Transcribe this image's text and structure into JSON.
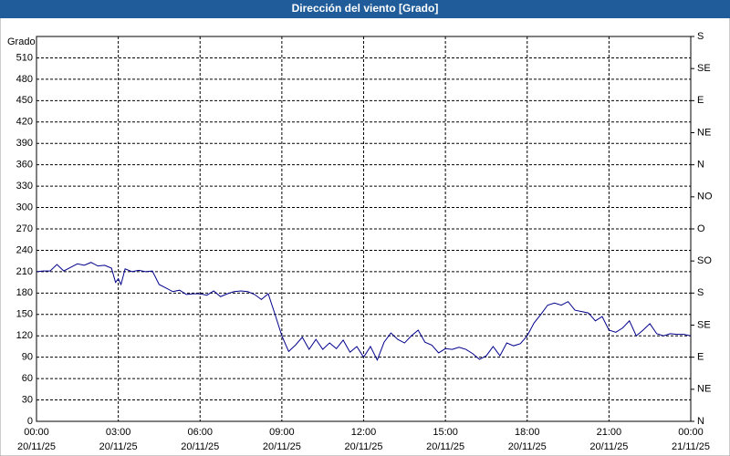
{
  "chart_data": {
    "type": "line",
    "title": "Dirección del viento [Grado]",
    "ylabel": "Grado",
    "x": [
      0,
      0.25,
      0.5,
      0.75,
      1,
      1.25,
      1.5,
      1.75,
      2,
      2.25,
      2.5,
      2.75,
      2.9,
      3,
      3.1,
      3.25,
      3.5,
      3.75,
      4,
      4.25,
      4.5,
      4.75,
      5,
      5.25,
      5.5,
      5.75,
      6,
      6.25,
      6.5,
      6.75,
      7,
      7.25,
      7.5,
      7.75,
      8,
      8.25,
      8.5,
      8.75,
      9,
      9.25,
      9.5,
      9.75,
      10,
      10.25,
      10.5,
      10.75,
      11,
      11.25,
      11.5,
      11.75,
      12,
      12.25,
      12.5,
      12.75,
      13,
      13.25,
      13.5,
      13.75,
      14,
      14.25,
      14.5,
      14.75,
      15,
      15.25,
      15.5,
      15.75,
      16,
      16.25,
      16.5,
      16.75,
      17,
      17.25,
      17.5,
      17.75,
      18,
      18.25,
      18.5,
      18.75,
      19,
      19.25,
      19.5,
      19.75,
      20,
      20.25,
      20.5,
      20.75,
      21,
      21.25,
      21.5,
      21.75,
      22,
      22.25,
      22.5,
      22.75,
      23,
      23.25,
      23.5,
      23.75,
      24
    ],
    "series": [
      {
        "name": "Dirección del viento",
        "color": "#00008b",
        "values": [
          210,
          211,
          211,
          220,
          211,
          216,
          221,
          219,
          223,
          218,
          219,
          215,
          195,
          200,
          192,
          214,
          210,
          212,
          210,
          211,
          192,
          187,
          182,
          184,
          178,
          179,
          179,
          177,
          183,
          175,
          179,
          182,
          183,
          182,
          178,
          171,
          179,
          150,
          120,
          98,
          107,
          118,
          101,
          115,
          101,
          110,
          102,
          114,
          97,
          105,
          90,
          105,
          86,
          111,
          124,
          115,
          110,
          120,
          128,
          111,
          107,
          96,
          102,
          101,
          104,
          101,
          95,
          87,
          92,
          105,
          92,
          110,
          106,
          109,
          120,
          138,
          150,
          163,
          166,
          163,
          168,
          156,
          154,
          152,
          141,
          147,
          128,
          125,
          131,
          141,
          120,
          128,
          137,
          123,
          120,
          123,
          122,
          122,
          120
        ]
      }
    ],
    "xlim": [
      0,
      24
    ],
    "xticks": [
      {
        "value": 0,
        "label": "00:00"
      },
      {
        "value": 3,
        "label": "03:00"
      },
      {
        "value": 6,
        "label": "06:00"
      },
      {
        "value": 9,
        "label": "09:00"
      },
      {
        "value": 12,
        "label": "12:00"
      },
      {
        "value": 15,
        "label": "15:00"
      },
      {
        "value": 18,
        "label": "18:00"
      },
      {
        "value": 21,
        "label": "21:00"
      },
      {
        "value": 24,
        "label": "00:00"
      }
    ],
    "xtick_dates": [
      "20/11/25",
      "20/11/25",
      "20/11/25",
      "20/11/25",
      "20/11/25",
      "20/11/25",
      "20/11/25",
      "20/11/25",
      "21/11/25"
    ],
    "ylim": [
      0,
      540
    ],
    "yticks": [
      0,
      30,
      60,
      90,
      120,
      150,
      180,
      210,
      240,
      270,
      300,
      330,
      360,
      390,
      420,
      450,
      480,
      510
    ],
    "y2lim": [
      0,
      540
    ],
    "y2ticks": [
      {
        "value": 0,
        "label": "N"
      },
      {
        "value": 45,
        "label": "NE"
      },
      {
        "value": 90,
        "label": "E"
      },
      {
        "value": 135,
        "label": "SE"
      },
      {
        "value": 180,
        "label": "S"
      },
      {
        "value": 225,
        "label": "SO"
      },
      {
        "value": 270,
        "label": "O"
      },
      {
        "value": 315,
        "label": "NO"
      },
      {
        "value": 360,
        "label": "N"
      },
      {
        "value": 405,
        "label": "NE"
      },
      {
        "value": 450,
        "label": "E"
      },
      {
        "value": 495,
        "label": "SE"
      },
      {
        "value": 540,
        "label": "S"
      }
    ],
    "grid": true
  }
}
